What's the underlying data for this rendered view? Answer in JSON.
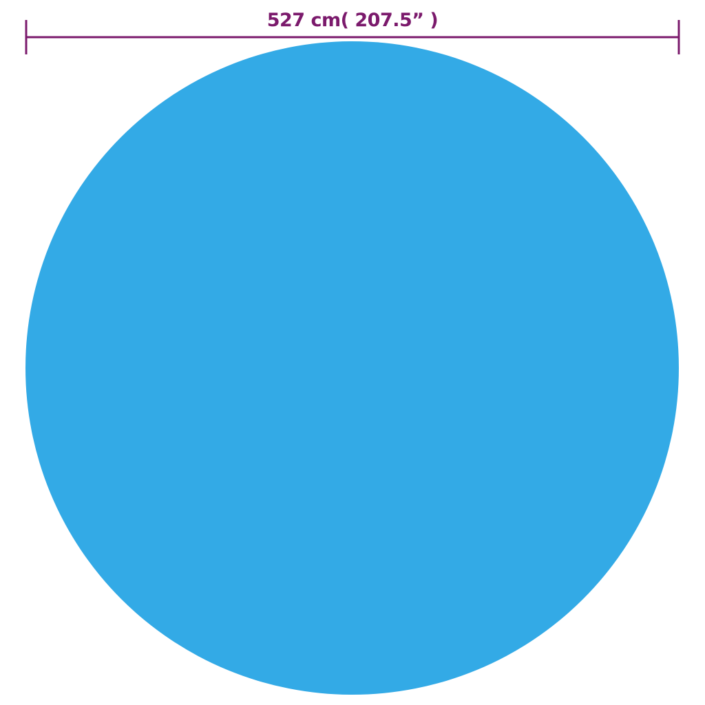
{
  "dimension": {
    "label": "527 cm( 207.5”  )",
    "color": "#7b1a6c"
  },
  "shape": {
    "type": "circle",
    "color": "#33aae6"
  }
}
